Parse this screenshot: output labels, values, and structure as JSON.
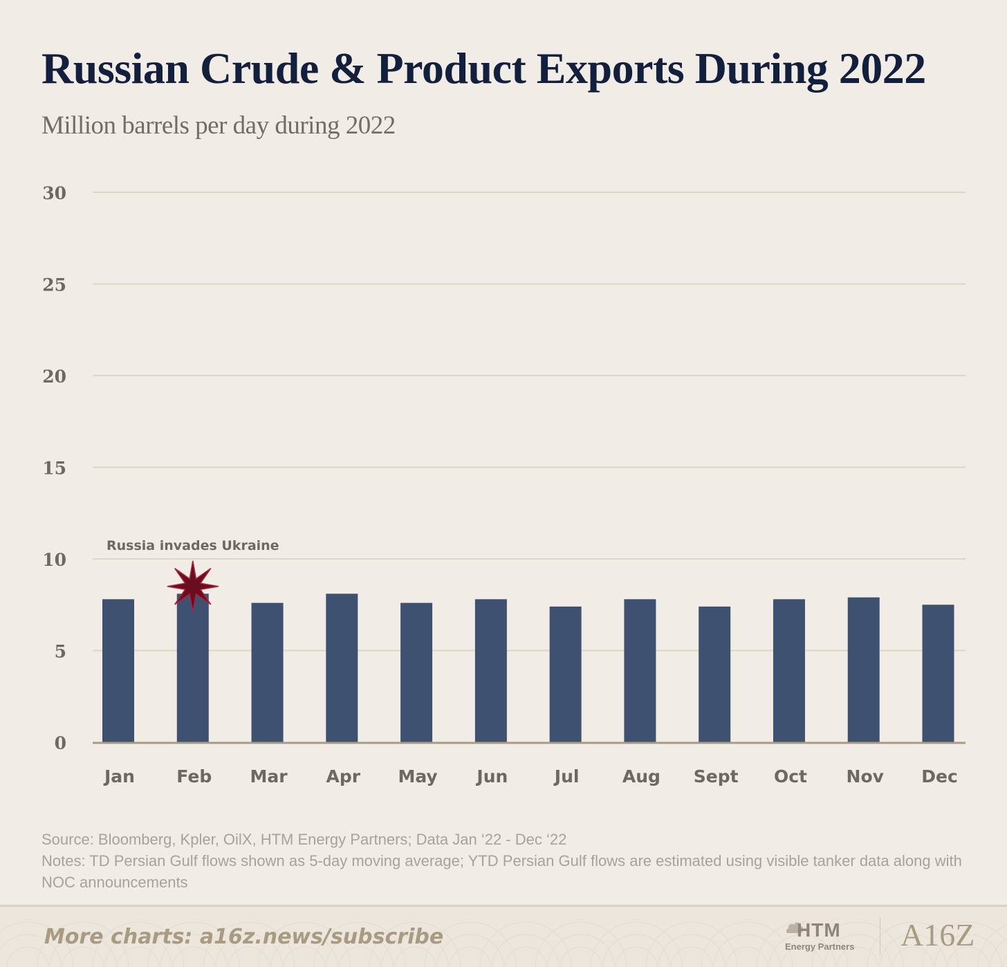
{
  "title": "Russian Crude & Product Exports During 2022",
  "subtitle": "Million barrels per day during 2022",
  "chart_data": {
    "type": "bar",
    "title": "Russian Crude & Product Exports During 2022",
    "ylabel": "Million barrels per day",
    "xlabel": "",
    "categories": [
      "Jan",
      "Feb",
      "Mar",
      "Apr",
      "May",
      "Jun",
      "Jul",
      "Aug",
      "Sept",
      "Oct",
      "Nov",
      "Dec"
    ],
    "values": [
      7.8,
      8.1,
      7.6,
      8.1,
      7.6,
      7.8,
      7.4,
      7.8,
      7.4,
      7.8,
      7.9,
      7.5
    ],
    "ylim": [
      0,
      30
    ],
    "yticks": [
      0,
      5,
      10,
      15,
      20,
      25,
      30
    ],
    "grid": true,
    "bar_color": "#3e5170",
    "annotation": {
      "label": "Russia invades Ukraine",
      "category": "Feb",
      "value": 8.5,
      "marker": "star",
      "marker_color": "#6b0d1e"
    }
  },
  "footer": {
    "source": "Source: Bloomberg, Kpler, OilX, HTM Energy Partners; Data Jan ‘22 - Dec ‘22",
    "notes": "Notes: TD Persian Gulf flows shown as 5-day moving average; YTD Persian Gulf flows are estimated using visible tanker data along with NOC announcements",
    "cta": "More charts: a16z.news/subscribe",
    "logos": {
      "htm_name": "HTM",
      "htm_sub": "Energy Partners",
      "a16z": "A16Z"
    }
  },
  "colors": {
    "background": "#f1ece5",
    "title": "#12203d",
    "grid": "#ddd6c2",
    "axis": "#a89c87",
    "tick_label": "#6d6860"
  }
}
